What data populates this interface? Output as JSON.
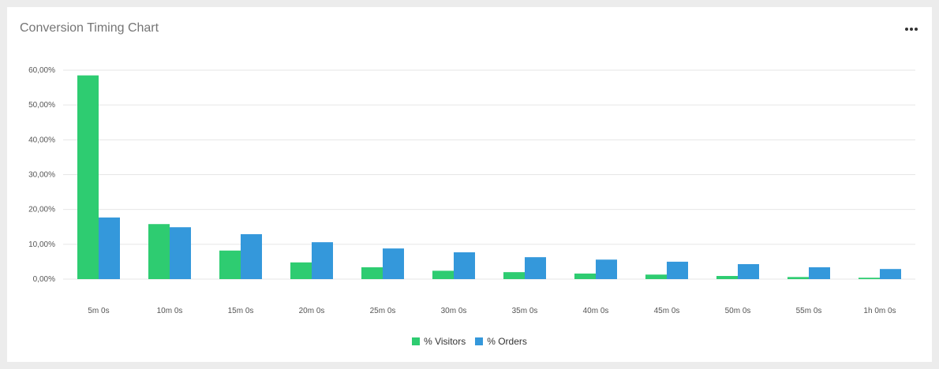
{
  "card": {
    "title": "Conversion Timing Chart",
    "menu_icon": "more-horizontal-icon"
  },
  "colors": {
    "visitors": "#2ecc71",
    "orders": "#3498db",
    "grid": "#e6e6e6"
  },
  "chart_data": {
    "type": "bar",
    "title": "Conversion Timing Chart",
    "xlabel": "",
    "ylabel": "",
    "ylim": [
      0,
      60
    ],
    "y_ticks": [
      "0,00%",
      "10,00%",
      "20,00%",
      "30,00%",
      "40,00%",
      "50,00%",
      "60,00%"
    ],
    "categories": [
      "5m 0s",
      "10m 0s",
      "15m 0s",
      "20m 0s",
      "25m 0s",
      "30m 0s",
      "35m 0s",
      "40m 0s",
      "45m 0s",
      "50m 0s",
      "55m 0s",
      "1h 0m 0s"
    ],
    "series": [
      {
        "name": "% Visitors",
        "color": "#2ecc71",
        "values": [
          58.5,
          15.8,
          8.2,
          4.8,
          3.4,
          2.4,
          2.0,
          1.6,
          1.3,
          0.9,
          0.6,
          0.4
        ]
      },
      {
        "name": "% Orders",
        "color": "#3498db",
        "values": [
          17.7,
          14.9,
          12.9,
          10.6,
          8.8,
          7.7,
          6.3,
          5.6,
          5.0,
          4.3,
          3.4,
          2.9
        ]
      }
    ],
    "grid": true,
    "legend_position": "bottom-center"
  }
}
